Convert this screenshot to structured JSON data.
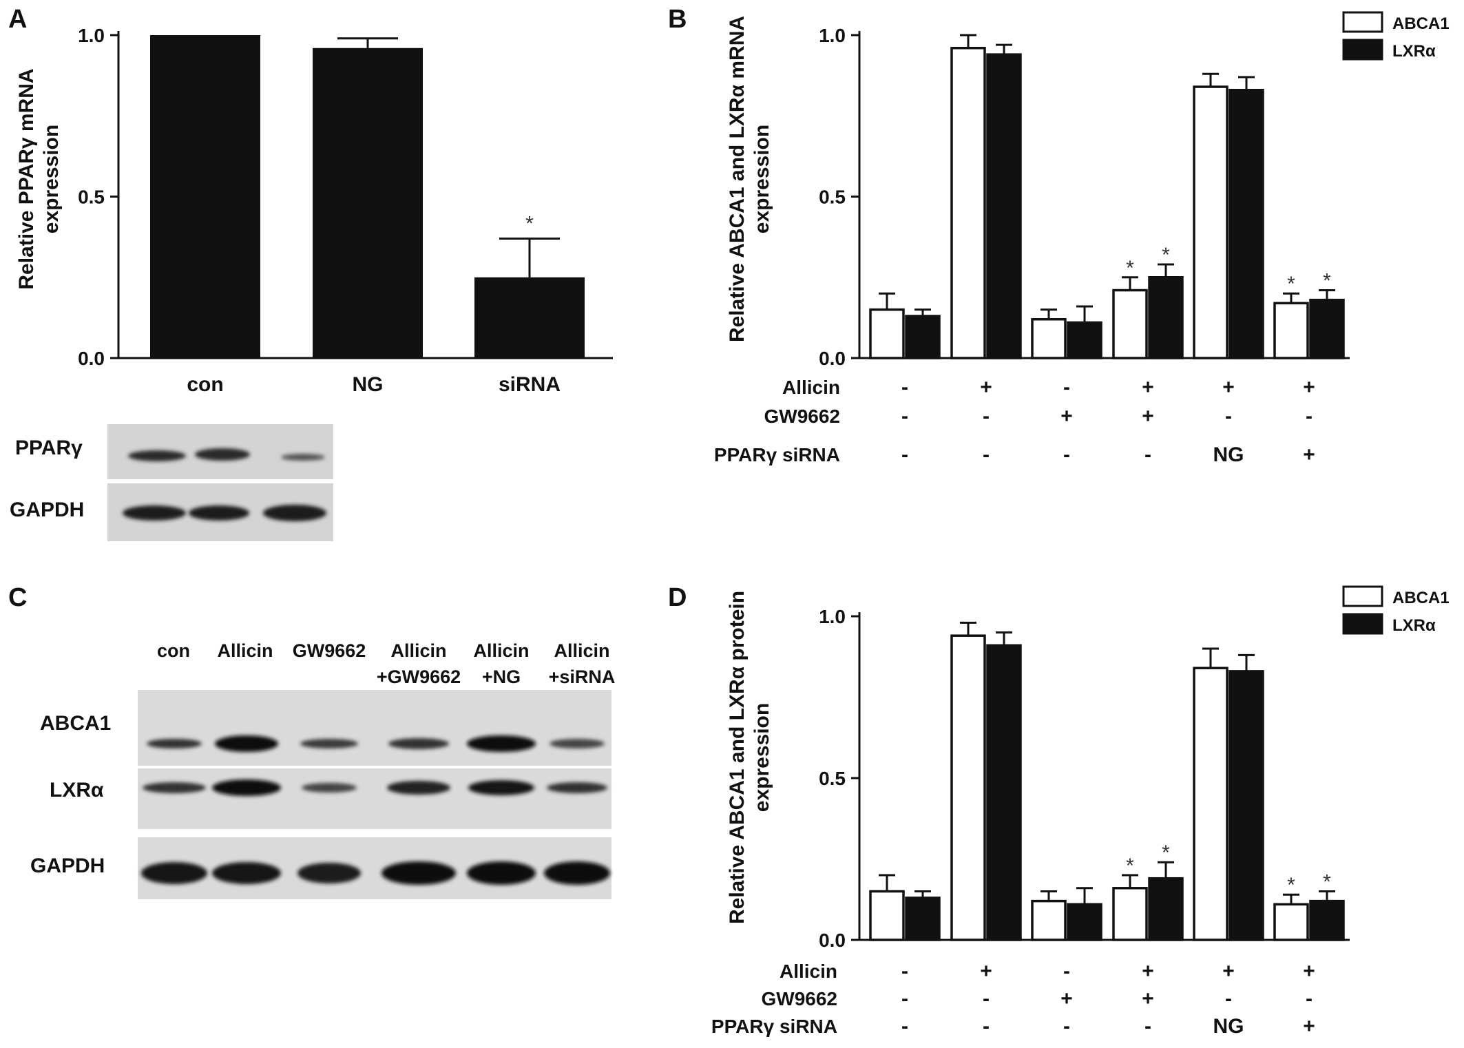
{
  "panels": {
    "a": "A",
    "b": "B",
    "c": "C",
    "d": "D"
  },
  "chart_data": [
    {
      "id": "A",
      "type": "bar",
      "ylabel_line1": "Relative PPARγ mRNA",
      "ylabel_line2": "expression",
      "ylim": [
        0,
        1.0
      ],
      "yticks": [
        "0.0",
        "0.5",
        "1.0"
      ],
      "categories": [
        "con",
        "NG",
        "siRNA"
      ],
      "values": [
        1.0,
        0.96,
        0.25
      ],
      "errors": [
        0.0,
        0.03,
        0.12
      ],
      "significance": [
        "",
        "",
        "*"
      ],
      "colors": [
        "#111111"
      ]
    },
    {
      "id": "B",
      "type": "bar",
      "ylabel_line1": "Relative ABCA1 and LXRα mRNA",
      "ylabel_line2": "expression",
      "ylim": [
        0,
        1.0
      ],
      "yticks": [
        "0.0",
        "0.5",
        "1.0"
      ],
      "series": [
        {
          "name": "ABCA1",
          "values": [
            0.15,
            0.96,
            0.12,
            0.21,
            0.84,
            0.17
          ],
          "errors": [
            0.05,
            0.04,
            0.03,
            0.04,
            0.04,
            0.03
          ],
          "significance": [
            "",
            "",
            "",
            "*",
            "",
            "*"
          ]
        },
        {
          "name": "LXRα",
          "values": [
            0.13,
            0.94,
            0.11,
            0.25,
            0.83,
            0.18
          ],
          "errors": [
            0.02,
            0.03,
            0.05,
            0.04,
            0.04,
            0.03
          ],
          "significance": [
            "",
            "",
            "",
            "*",
            "",
            "*"
          ]
        }
      ],
      "treatment_rows": [
        {
          "label": "Allicin",
          "symbols": [
            "-",
            "+",
            "-",
            "+",
            "+",
            "+"
          ]
        },
        {
          "label": "GW9662",
          "symbols": [
            "-",
            "-",
            "+",
            "+",
            "-",
            "-"
          ]
        },
        {
          "label": "PPARγ siRNA",
          "symbols": [
            "-",
            "-",
            "-",
            "-",
            "NG",
            "+"
          ]
        }
      ],
      "legend_position": "top-right"
    },
    {
      "id": "D",
      "type": "bar",
      "ylabel_line1": "Relative ABCA1 and LXRα protein",
      "ylabel_line2": "expression",
      "ylim": [
        0,
        1.0
      ],
      "yticks": [
        "0.0",
        "0.5",
        "1.0"
      ],
      "series": [
        {
          "name": "ABCA1",
          "values": [
            0.15,
            0.94,
            0.12,
            0.16,
            0.84,
            0.11
          ],
          "errors": [
            0.05,
            0.04,
            0.03,
            0.04,
            0.06,
            0.03
          ],
          "significance": [
            "",
            "",
            "",
            "*",
            "",
            "*"
          ]
        },
        {
          "name": "LXRα",
          "values": [
            0.13,
            0.91,
            0.11,
            0.19,
            0.83,
            0.12
          ],
          "errors": [
            0.02,
            0.04,
            0.05,
            0.05,
            0.05,
            0.03
          ],
          "significance": [
            "",
            "",
            "",
            "*",
            "",
            "*"
          ]
        }
      ],
      "treatment_rows": [
        {
          "label": "Allicin",
          "symbols": [
            "-",
            "+",
            "-",
            "+",
            "+",
            "+"
          ]
        },
        {
          "label": "GW9662",
          "symbols": [
            "-",
            "-",
            "+",
            "+",
            "-",
            "-"
          ]
        },
        {
          "label": "PPARγ siRNA",
          "symbols": [
            "-",
            "-",
            "-",
            "-",
            "NG",
            "+"
          ]
        }
      ],
      "legend_position": "top-right"
    }
  ],
  "blots": {
    "a": {
      "rows": [
        "PPARγ",
        "GAPDH"
      ]
    },
    "c": {
      "lanes": [
        {
          "line1": "con",
          "line2": ""
        },
        {
          "line1": "Allicin",
          "line2": ""
        },
        {
          "line1": "GW9662",
          "line2": ""
        },
        {
          "line1": "Allicin",
          "line2": "+GW9662"
        },
        {
          "line1": "Allicin",
          "line2": "+NG"
        },
        {
          "line1": "Allicin",
          "line2": "+siRNA"
        }
      ],
      "rows": [
        "ABCA1",
        "LXRα",
        "GAPDH"
      ]
    }
  },
  "colors": {
    "bar_dark": "#111111",
    "bar_light": "#ffffff",
    "blot_bg": "#d9d9d9",
    "band": "#1a1a1a"
  }
}
